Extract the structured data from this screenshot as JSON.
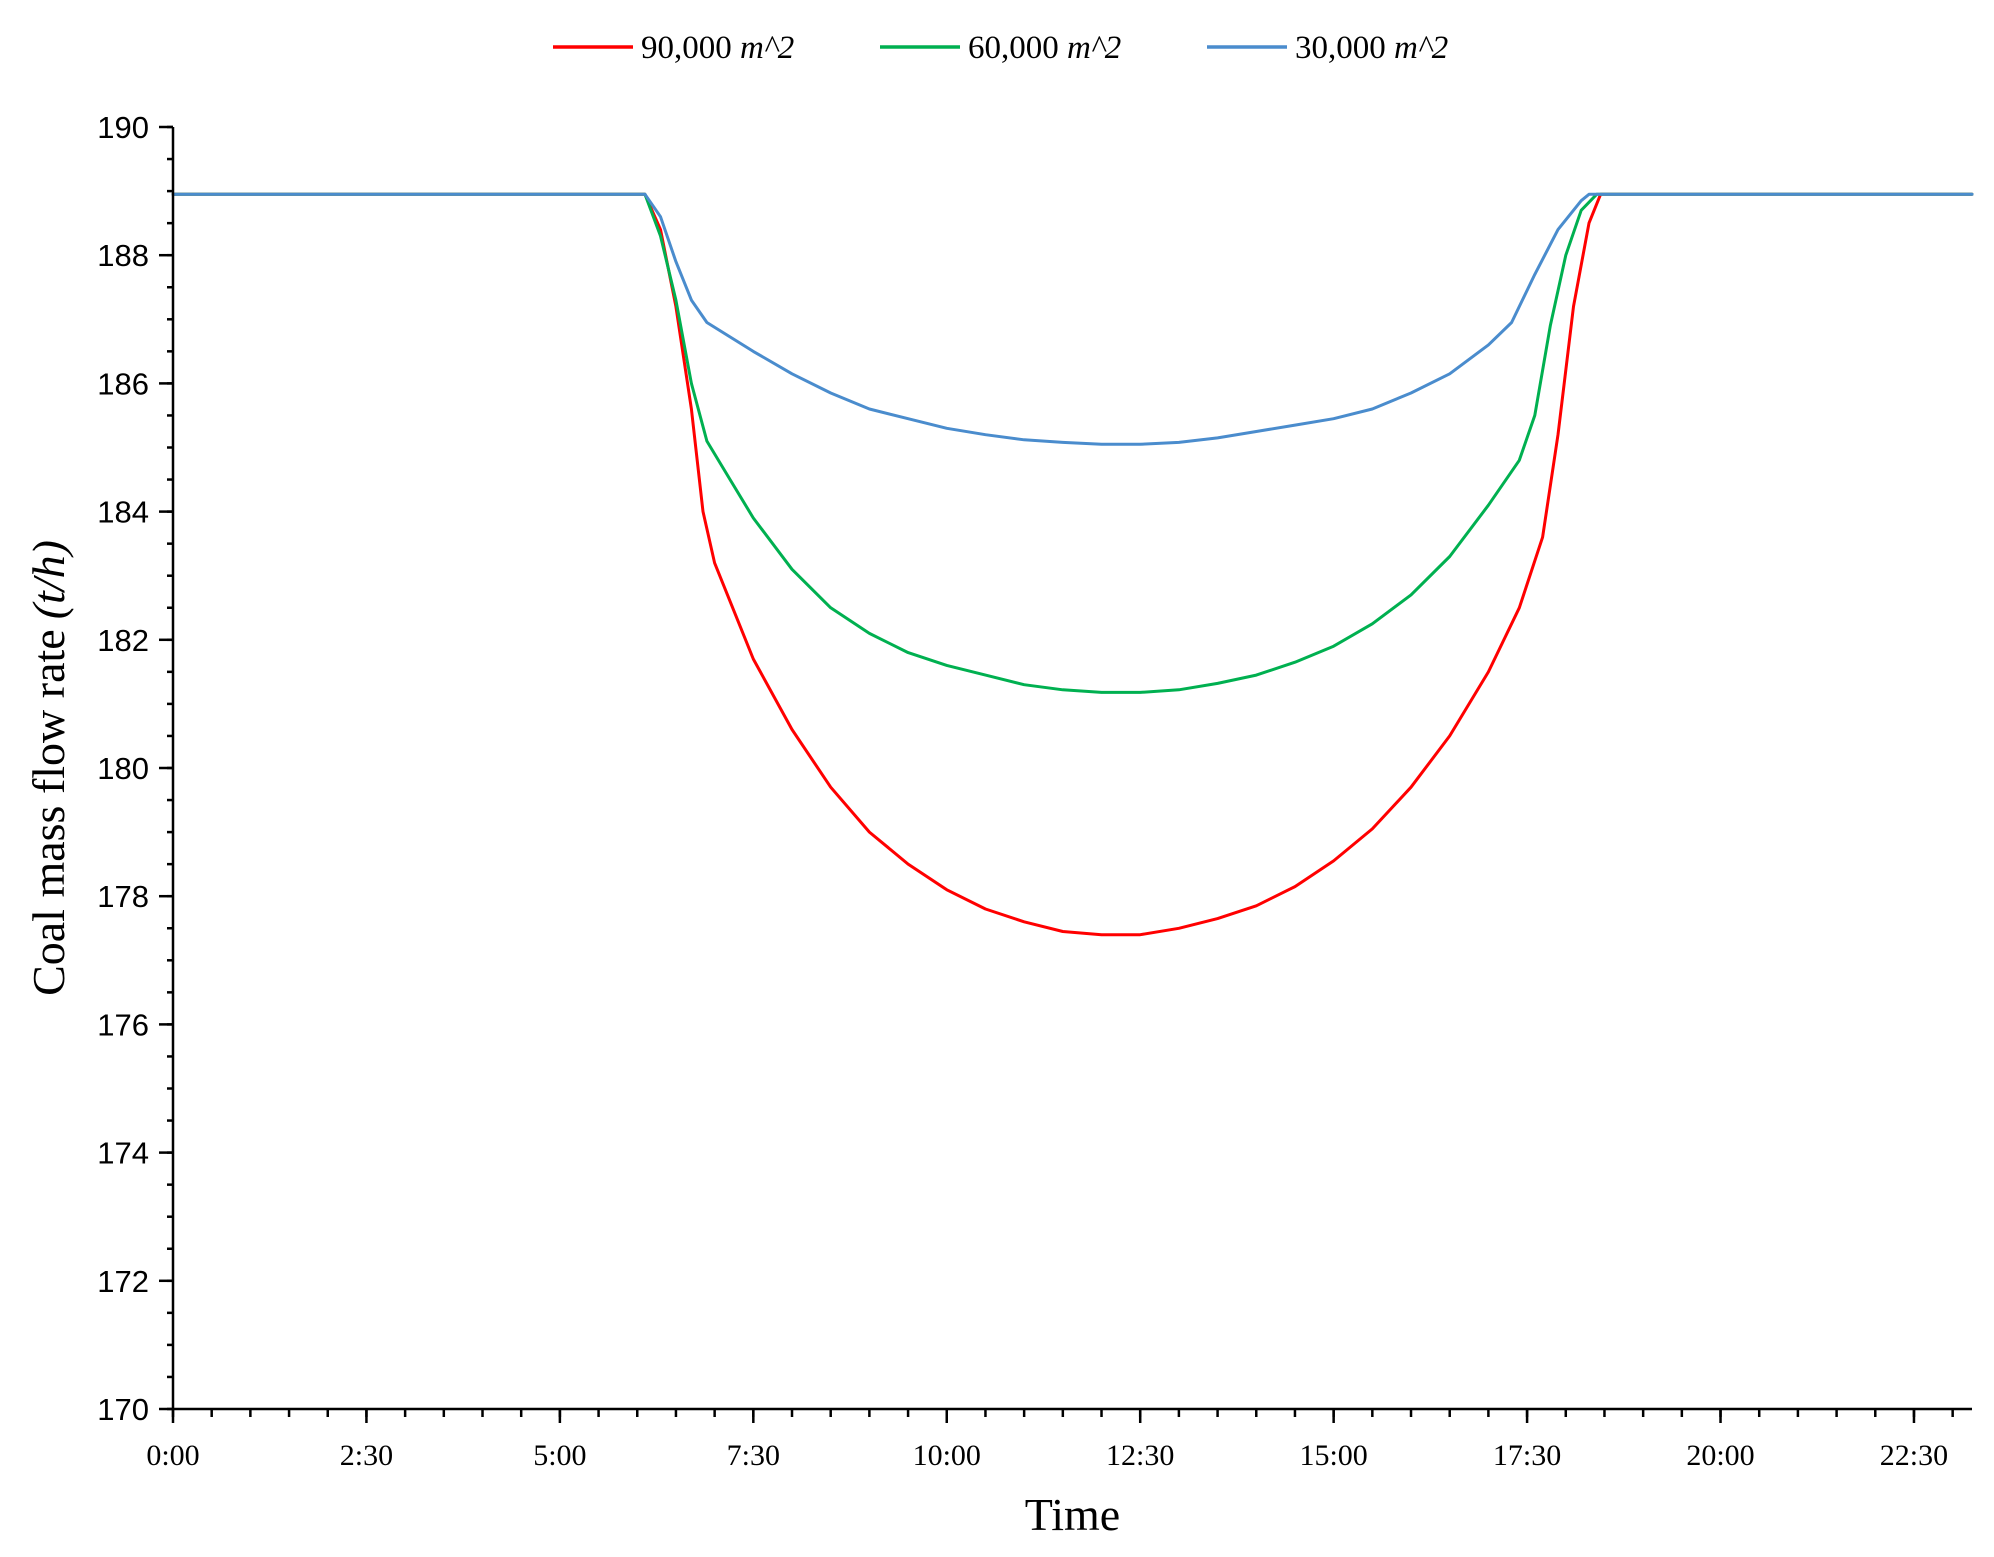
{
  "chart_data": {
    "type": "line",
    "xlabel": "Time",
    "ylabel": "Coal mass flow rate",
    "ylabel_unit": "(t/h)",
    "ylim": [
      170,
      190
    ],
    "yticks": [
      170,
      172,
      174,
      176,
      178,
      180,
      182,
      184,
      186,
      188,
      190
    ],
    "y_minor_step": 0.5,
    "xlim_hours": [
      0,
      23.25
    ],
    "xticks": [
      {
        "label": "0:00",
        "hour": 0
      },
      {
        "label": "2:30",
        "hour": 2.5
      },
      {
        "label": "5:00",
        "hour": 5
      },
      {
        "label": "7:30",
        "hour": 7.5
      },
      {
        "label": "10:00",
        "hour": 10
      },
      {
        "label": "12:30",
        "hour": 12.5
      },
      {
        "label": "15:00",
        "hour": 15
      },
      {
        "label": "17:30",
        "hour": 17.5
      },
      {
        "label": "20:00",
        "hour": 20
      },
      {
        "label": "22:30",
        "hour": 22.5
      }
    ],
    "x_minor_step_hours": 0.5,
    "grid": false,
    "legend_position": "top",
    "series": [
      {
        "name": "90,000",
        "unit": "m^2",
        "color": "#ff0000",
        "points": [
          [
            0,
            188.95
          ],
          [
            6.1,
            188.95
          ],
          [
            6.3,
            188.4
          ],
          [
            6.5,
            187.2
          ],
          [
            6.7,
            185.6
          ],
          [
            6.85,
            184.0
          ],
          [
            7.0,
            183.2
          ],
          [
            7.5,
            181.7
          ],
          [
            8.0,
            180.6
          ],
          [
            8.5,
            179.7
          ],
          [
            9.0,
            179.0
          ],
          [
            9.5,
            178.5
          ],
          [
            10.0,
            178.1
          ],
          [
            10.5,
            177.8
          ],
          [
            11.0,
            177.6
          ],
          [
            11.5,
            177.45
          ],
          [
            12.0,
            177.4
          ],
          [
            12.5,
            177.4
          ],
          [
            13.0,
            177.5
          ],
          [
            13.5,
            177.65
          ],
          [
            14.0,
            177.85
          ],
          [
            14.5,
            178.15
          ],
          [
            15.0,
            178.55
          ],
          [
            15.5,
            179.05
          ],
          [
            16.0,
            179.7
          ],
          [
            16.5,
            180.5
          ],
          [
            17.0,
            181.5
          ],
          [
            17.4,
            182.5
          ],
          [
            17.7,
            183.6
          ],
          [
            17.9,
            185.2
          ],
          [
            18.1,
            187.2
          ],
          [
            18.3,
            188.5
          ],
          [
            18.45,
            188.95
          ],
          [
            23.25,
            188.95
          ]
        ]
      },
      {
        "name": "60,000",
        "unit": "m^2",
        "color": "#00b050",
        "points": [
          [
            0,
            188.95
          ],
          [
            6.1,
            188.95
          ],
          [
            6.3,
            188.3
          ],
          [
            6.5,
            187.3
          ],
          [
            6.7,
            186.0
          ],
          [
            6.9,
            185.1
          ],
          [
            7.2,
            184.5
          ],
          [
            7.5,
            183.9
          ],
          [
            8.0,
            183.1
          ],
          [
            8.5,
            182.5
          ],
          [
            9.0,
            182.1
          ],
          [
            9.5,
            181.8
          ],
          [
            10.0,
            181.6
          ],
          [
            10.5,
            181.45
          ],
          [
            11.0,
            181.3
          ],
          [
            11.5,
            181.22
          ],
          [
            12.0,
            181.18
          ],
          [
            12.5,
            181.18
          ],
          [
            13.0,
            181.22
          ],
          [
            13.5,
            181.32
          ],
          [
            14.0,
            181.45
          ],
          [
            14.5,
            181.65
          ],
          [
            15.0,
            181.9
          ],
          [
            15.5,
            182.25
          ],
          [
            16.0,
            182.7
          ],
          [
            16.5,
            183.3
          ],
          [
            17.0,
            184.1
          ],
          [
            17.4,
            184.8
          ],
          [
            17.6,
            185.5
          ],
          [
            17.8,
            186.9
          ],
          [
            18.0,
            188.0
          ],
          [
            18.2,
            188.7
          ],
          [
            18.4,
            188.95
          ],
          [
            23.25,
            188.95
          ]
        ]
      },
      {
        "name": "30,000",
        "unit": "m^2",
        "color": "#4a8ccd",
        "points": [
          [
            0,
            188.95
          ],
          [
            6.1,
            188.95
          ],
          [
            6.3,
            188.6
          ],
          [
            6.5,
            187.9
          ],
          [
            6.7,
            187.3
          ],
          [
            6.9,
            186.95
          ],
          [
            7.5,
            186.5
          ],
          [
            8.0,
            186.15
          ],
          [
            8.5,
            185.85
          ],
          [
            9.0,
            185.6
          ],
          [
            9.5,
            185.45
          ],
          [
            10.0,
            185.3
          ],
          [
            10.5,
            185.2
          ],
          [
            11.0,
            185.12
          ],
          [
            11.5,
            185.08
          ],
          [
            12.0,
            185.05
          ],
          [
            12.5,
            185.05
          ],
          [
            13.0,
            185.08
          ],
          [
            13.5,
            185.15
          ],
          [
            14.0,
            185.25
          ],
          [
            14.5,
            185.35
          ],
          [
            15.0,
            185.45
          ],
          [
            15.5,
            185.6
          ],
          [
            16.0,
            185.85
          ],
          [
            16.5,
            186.15
          ],
          [
            17.0,
            186.6
          ],
          [
            17.3,
            186.95
          ],
          [
            17.6,
            187.7
          ],
          [
            17.9,
            188.4
          ],
          [
            18.2,
            188.85
          ],
          [
            18.3,
            188.95
          ],
          [
            23.25,
            188.95
          ]
        ]
      }
    ]
  }
}
